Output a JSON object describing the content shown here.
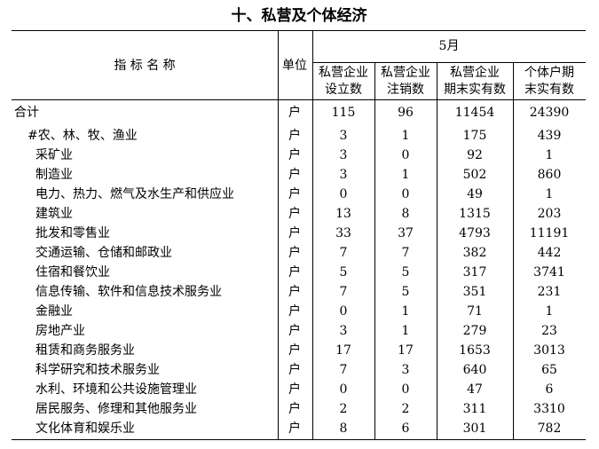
{
  "title": "十、私营及个体经济",
  "table": {
    "header": {
      "name": "指 标 名 称",
      "unit": "单位",
      "period": "5月",
      "columns": [
        [
          "私营企业",
          "设立数"
        ],
        [
          "私营企业",
          "注销数"
        ],
        [
          "私营企业",
          "期末实有数"
        ],
        [
          "个体户期",
          "末实有数"
        ]
      ]
    },
    "rows": [
      [
        "合计",
        "户",
        115,
        96,
        11454,
        24390
      ],
      [
        "#农、林、牧、渔业",
        "户",
        3,
        1,
        175,
        439
      ],
      [
        "采矿业",
        "户",
        3,
        0,
        92,
        1
      ],
      [
        "制造业",
        "户",
        3,
        1,
        502,
        860
      ],
      [
        "电力、热力、燃气及水生产和供应业",
        "户",
        0,
        0,
        49,
        1
      ],
      [
        "建筑业",
        "户",
        13,
        8,
        1315,
        203
      ],
      [
        "批发和零售业",
        "户",
        33,
        37,
        4793,
        11191
      ],
      [
        "交通运输、仓储和邮政业",
        "户",
        7,
        7,
        382,
        442
      ],
      [
        "住宿和餐饮业",
        "户",
        5,
        5,
        317,
        3741
      ],
      [
        "信息传输、软件和信息技术服务业",
        "户",
        7,
        5,
        351,
        231
      ],
      [
        "金融业",
        "户",
        0,
        1,
        71,
        1
      ],
      [
        "房地产业",
        "户",
        3,
        1,
        279,
        23
      ],
      [
        "租赁和商务服务业",
        "户",
        17,
        17,
        1653,
        3013
      ],
      [
        "科学研究和技术服务业",
        "户",
        7,
        3,
        640,
        65
      ],
      [
        "水利、环境和公共设施管理业",
        "户",
        0,
        0,
        47,
        6
      ],
      [
        "居民服务、修理和其他服务业",
        "户",
        2,
        2,
        311,
        3310
      ],
      [
        "文化体育和娱乐业",
        "户",
        8,
        6,
        301,
        782
      ]
    ]
  }
}
